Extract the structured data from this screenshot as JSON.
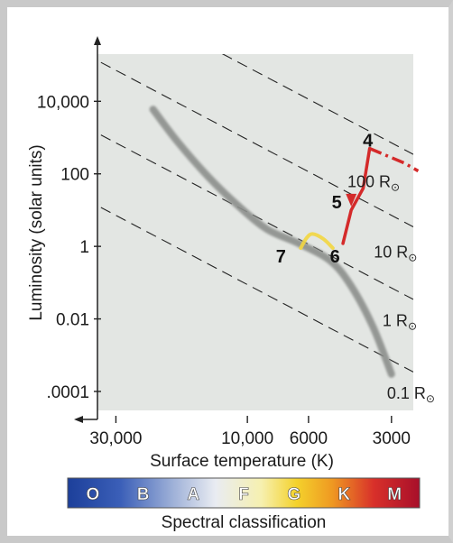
{
  "chart_data": {
    "type": "scatter",
    "xlabel": "Surface temperature (K)",
    "ylabel": "Luminosity (solar units)",
    "x_scale": "log",
    "x_reversed": true,
    "y_scale": "log",
    "xlim": [
      35000,
      2500
    ],
    "ylim": [
      3e-05,
      200000
    ],
    "x_ticks": [
      {
        "value": 30000,
        "label": "30,000"
      },
      {
        "value": 10000,
        "label": "10,000"
      },
      {
        "value": 6000,
        "label": "6000"
      },
      {
        "value": 3000,
        "label": "3000"
      }
    ],
    "y_ticks": [
      {
        "value": 10000,
        "label": "10,000"
      },
      {
        "value": 100,
        "label": "100"
      },
      {
        "value": 1,
        "label": "1"
      },
      {
        "value": 0.01,
        "label": "0.01"
      },
      {
        "value": 0.0001,
        "label": ".0001"
      }
    ],
    "radius_lines": [
      {
        "label": "100 R",
        "radius": 100
      },
      {
        "label": "10 R",
        "radius": 10
      },
      {
        "label": "1 R",
        "radius": 1
      },
      {
        "label": "0.1 R",
        "radius": 0.1
      }
    ],
    "solar_symbol": "⊙",
    "main_sequence": [
      {
        "x": 22000,
        "y": 6000
      },
      {
        "x": 18000,
        "y": 800
      },
      {
        "x": 14000,
        "y": 90
      },
      {
        "x": 11000,
        "y": 15
      },
      {
        "x": 8500,
        "y": 3
      },
      {
        "x": 6500,
        "y": 1.2
      },
      {
        "x": 5000,
        "y": 0.4
      },
      {
        "x": 4200,
        "y": 0.08
      },
      {
        "x": 3500,
        "y": 0.006
      },
      {
        "x": 3000,
        "y": 0.0003
      }
    ],
    "evolutionary_track": [
      {
        "x": 3600,
        "y": 500
      },
      {
        "x": 3800,
        "y": 40
      },
      {
        "x": 4200,
        "y": 10
      },
      {
        "x": 4500,
        "y": 1.2
      }
    ],
    "track_extension": [
      {
        "x": 3600,
        "y": 500
      },
      {
        "x": 2700,
        "y": 200
      },
      {
        "x": 2400,
        "y": 120
      }
    ],
    "protostar_track": [
      {
        "x": 4900,
        "y": 0.9
      },
      {
        "x": 5300,
        "y": 1.6
      },
      {
        "x": 5800,
        "y": 2.2
      },
      {
        "x": 6100,
        "y": 1.7
      },
      {
        "x": 6400,
        "y": 0.9
      }
    ],
    "points": [
      {
        "label": "4",
        "x": 3600,
        "y": 500
      },
      {
        "label": "5",
        "x": 4200,
        "y": 10
      },
      {
        "label": "6",
        "x": 4600,
        "y": 0.8
      },
      {
        "label": "7",
        "x": 6500,
        "y": 0.8
      }
    ],
    "colors": {
      "plot_background": "#e3e6e3",
      "main_sequence": "#8c8f8c",
      "track": "#d42a2a",
      "protostar": "#f2d640",
      "radius_lines": "#222222"
    }
  },
  "spectral_bar": {
    "title": "Spectral classification",
    "classes": [
      "O",
      "B",
      "A",
      "F",
      "G",
      "K",
      "M"
    ]
  }
}
